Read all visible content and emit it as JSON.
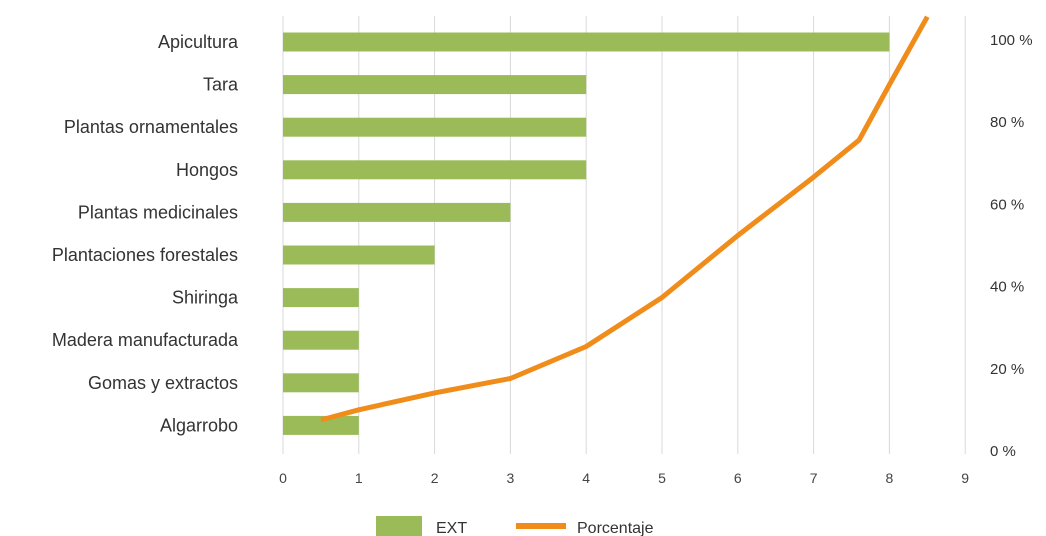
{
  "chart_data": {
    "type": "bar",
    "orientation": "horizontal",
    "categories": [
      "Apicultura",
      "Tara",
      "Plantas ornamentales",
      "Hongos",
      "Plantas medicinales",
      "Plantaciones forestales",
      "Shiringa",
      "Madera manufacturada",
      "Gomas y extractos",
      "Algarrobo"
    ],
    "series": [
      {
        "name": "EXT",
        "type": "bar",
        "axis": "x",
        "color": "#9BBB59",
        "values": [
          8,
          4,
          4,
          4,
          3,
          2,
          1,
          1,
          1,
          1
        ]
      },
      {
        "name": "Porcentaje",
        "type": "line",
        "axis": "secondary-y",
        "color": "#F08C1A",
        "points": [
          {
            "x": 0.5,
            "y": 3.4
          },
          {
            "x": 1.0,
            "y": 5.9
          },
          {
            "x": 2.0,
            "y": 10.0
          },
          {
            "x": 3.0,
            "y": 13.5
          },
          {
            "x": 4.0,
            "y": 21.3
          },
          {
            "x": 5.0,
            "y": 33.2
          },
          {
            "x": 6.0,
            "y": 48.3
          },
          {
            "x": 7.0,
            "y": 62.5
          },
          {
            "x": 7.6,
            "y": 71.5
          },
          {
            "x": 8.0,
            "y": 85.0
          },
          {
            "x": 8.5,
            "y": 101.5
          }
        ]
      }
    ],
    "x_axis": {
      "min": 0,
      "max": 9,
      "ticks": [
        "0",
        "1",
        "2",
        "3",
        "4",
        "5",
        "6",
        "7",
        "8",
        "9"
      ]
    },
    "secondary_y_axis": {
      "min": 0,
      "max": 100,
      "ticks": [
        "0 %",
        "20 %",
        "40 %",
        "60 %",
        "80 %",
        "100 %"
      ]
    },
    "title": "",
    "xlabel": "",
    "ylabel": "",
    "grid": "vertical",
    "legend": "bottom-center",
    "legend_labels": [
      "EXT",
      "Porcentaje"
    ]
  }
}
